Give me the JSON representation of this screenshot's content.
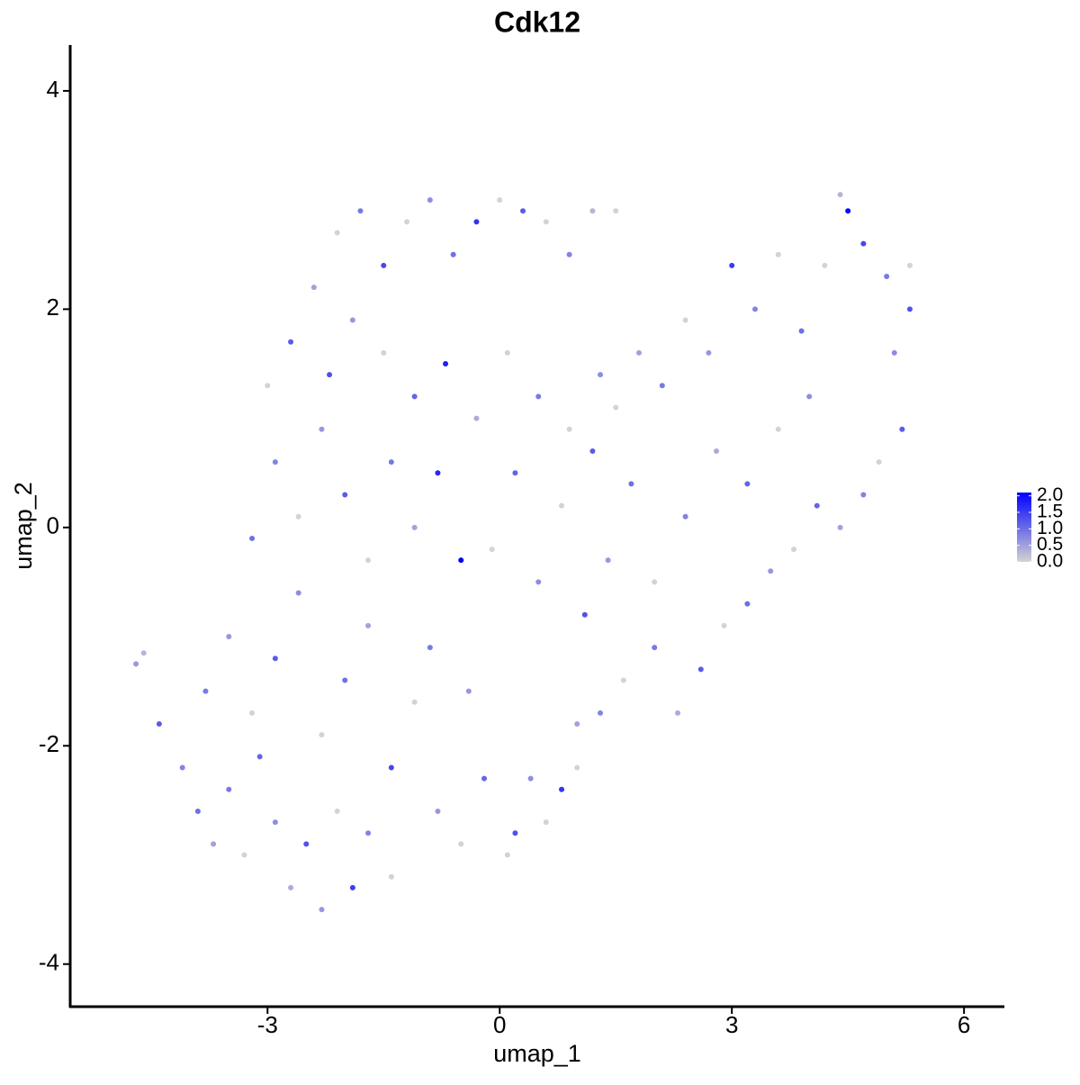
{
  "chart_data": {
    "type": "scatter",
    "title": "Cdk12",
    "x_label": "umap_1",
    "y_label": "umap_2",
    "x": [
      -4.7,
      -4.6,
      -4.4,
      -4.1,
      -3.9,
      -3.7,
      -3.5,
      -3.3,
      -3.1,
      -2.9,
      -2.7,
      -2.5,
      -2.3,
      -2.1,
      -1.9,
      -1.7,
      -1.4,
      -3.8,
      -3.5,
      -3.2,
      -2.9,
      -2.6,
      -2.3,
      -2.0,
      -1.7,
      -1.4,
      -1.1,
      -0.8,
      -0.5,
      -0.2,
      0.1,
      0.2,
      0.4,
      0.6,
      0.8,
      1.0,
      1.0,
      1.3,
      1.6,
      2.0,
      2.3,
      2.6,
      2.9,
      3.2,
      3.5,
      3.8,
      4.1,
      4.4,
      4.7,
      4.9,
      5.2,
      5.1,
      5.3,
      5.3,
      5.0,
      4.7,
      4.5,
      4.4,
      4.2,
      3.9,
      3.6,
      3.3,
      3.0,
      2.7,
      2.4,
      2.1,
      1.8,
      1.5,
      1.2,
      4.0,
      3.6,
      3.2,
      2.8,
      2.4,
      2.0,
      1.7,
      1.4,
      1.1,
      0.8,
      0.5,
      0.2,
      -0.1,
      -0.5,
      -0.8,
      -1.1,
      -1.4,
      -1.7,
      -2.0,
      -2.3,
      -2.6,
      -2.9,
      -3.2,
      -3.0,
      -2.7,
      -2.4,
      -2.1,
      -1.8,
      -1.5,
      -1.2,
      -0.9,
      -0.6,
      -0.3,
      0.0,
      0.3,
      0.6,
      0.9,
      1.2,
      1.5,
      -2.2,
      -1.9,
      -1.5,
      -1.1,
      -0.7,
      -0.3,
      0.1,
      0.5,
      0.9,
      1.3,
      -0.9,
      -0.4
    ],
    "y": [
      -1.25,
      -1.15,
      -1.8,
      -2.2,
      -2.6,
      -2.9,
      -2.4,
      -3.0,
      -2.1,
      -2.7,
      -3.3,
      -2.9,
      -3.5,
      -2.6,
      -3.3,
      -2.8,
      -3.2,
      -1.5,
      -1.0,
      -1.7,
      -1.2,
      -0.6,
      -1.9,
      -1.4,
      -0.9,
      -2.2,
      -1.6,
      -2.6,
      -2.9,
      -2.3,
      -3.0,
      -2.8,
      -2.3,
      -2.7,
      -2.4,
      -1.8,
      -2.2,
      -1.7,
      -1.4,
      -1.1,
      -1.7,
      -1.3,
      -0.9,
      -0.7,
      -0.4,
      -0.2,
      0.2,
      0.0,
      0.3,
      0.6,
      0.9,
      1.6,
      2.0,
      2.4,
      2.3,
      2.6,
      2.9,
      3.05,
      2.4,
      1.8,
      2.5,
      2.0,
      2.4,
      1.6,
      1.9,
      1.3,
      1.6,
      1.1,
      0.7,
      1.2,
      0.9,
      0.4,
      0.7,
      0.1,
      -0.5,
      0.4,
      -0.3,
      -0.8,
      0.2,
      -0.5,
      0.5,
      -0.2,
      -0.3,
      0.5,
      0.0,
      0.6,
      -0.3,
      0.3,
      0.9,
      0.1,
      0.6,
      -0.1,
      1.3,
      1.7,
      2.2,
      2.7,
      2.9,
      2.4,
      2.8,
      3.0,
      2.5,
      2.8,
      3.0,
      2.9,
      2.8,
      2.5,
      2.9,
      2.9,
      1.4,
      1.9,
      1.6,
      1.2,
      1.5,
      1.0,
      1.6,
      1.2,
      0.9,
      1.4,
      -1.1,
      -1.5
    ],
    "values": [
      0.6,
      0.3,
      1.2,
      0.8,
      1.0,
      0.5,
      0.9,
      0.0,
      1.1,
      0.7,
      0.4,
      1.3,
      0.6,
      0.0,
      1.5,
      0.8,
      0.0,
      0.9,
      0.6,
      0.0,
      1.2,
      0.7,
      0.0,
      1.0,
      0.5,
      1.4,
      0.0,
      0.6,
      0.0,
      1.1,
      0.0,
      1.3,
      0.7,
      0.0,
      1.6,
      0.5,
      0.0,
      0.8,
      0.0,
      0.9,
      0.4,
      1.2,
      0.0,
      1.0,
      0.6,
      0.0,
      1.1,
      0.5,
      0.8,
      0.0,
      1.2,
      0.7,
      1.3,
      0.0,
      0.9,
      1.4,
      2.0,
      0.3,
      0.0,
      1.0,
      0.0,
      0.8,
      1.5,
      0.6,
      0.0,
      0.9,
      0.5,
      0.0,
      1.2,
      0.7,
      0.0,
      1.1,
      0.4,
      0.8,
      0.0,
      1.0,
      0.6,
      1.3,
      0.0,
      0.7,
      1.1,
      0.0,
      2.1,
      1.7,
      0.5,
      0.9,
      0.0,
      1.2,
      0.6,
      0.0,
      0.8,
      1.0,
      0.0,
      1.2,
      0.5,
      0.0,
      0.9,
      1.4,
      0.0,
      0.7,
      1.0,
      1.6,
      0.0,
      1.2,
      0.0,
      0.8,
      0.3,
      0.0,
      1.3,
      0.6,
      0.0,
      1.1,
      1.8,
      0.4,
      0.0,
      0.9,
      0.0,
      0.7,
      0.9,
      0.6
    ],
    "xlim": [
      -5.55,
      6.51
    ],
    "ylim": [
      -4.39,
      4.42
    ],
    "xticks": [
      -3,
      0,
      3,
      6
    ],
    "yticks": [
      -4,
      -2,
      0,
      2,
      4
    ],
    "low_color": "#d3d3d3",
    "high_color": "#0000ff",
    "colorbar_lim": [
      0,
      2.1
    ],
    "colorbar_ticks": [
      {
        "value": 0,
        "label": "0.0"
      },
      {
        "value": 0.5,
        "label": "0.5"
      },
      {
        "value": 1,
        "label": "1.0"
      },
      {
        "value": 1.5,
        "label": "1.5"
      },
      {
        "value": 2,
        "label": "2.0"
      }
    ]
  }
}
